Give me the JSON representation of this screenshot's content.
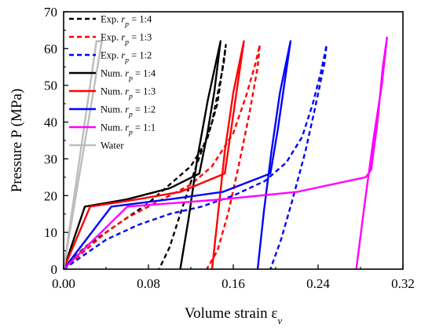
{
  "chart_data": {
    "type": "line",
    "xlabel": "Volume strain ε",
    "xlabel_sub": "v",
    "ylabel": "Pressure P (MPa)",
    "xlim": [
      0,
      0.32
    ],
    "ylim": [
      0,
      70
    ],
    "xticks": [
      "0.00",
      "0.08",
      "0.16",
      "0.24",
      "0.32"
    ],
    "yticks": [
      "0",
      "10",
      "20",
      "30",
      "40",
      "50",
      "60",
      "70"
    ],
    "legend_position": "top-left",
    "grid": false,
    "series": [
      {
        "name": "Exp. rp = 1:4",
        "label_prefix": "Exp. ",
        "label_var": "r",
        "label_sub": "p",
        "label_ratio": "= 1:4",
        "color": "#000000",
        "style": "dashed",
        "points": [
          [
            0.0,
            0
          ],
          [
            0.02,
            6
          ],
          [
            0.04,
            10
          ],
          [
            0.06,
            14
          ],
          [
            0.08,
            18
          ],
          [
            0.1,
            23
          ],
          [
            0.12,
            28
          ],
          [
            0.135,
            35
          ],
          [
            0.145,
            45
          ],
          [
            0.15,
            55
          ],
          [
            0.153,
            61
          ],
          [
            0.151,
            56
          ],
          [
            0.14,
            40
          ],
          [
            0.125,
            28
          ],
          [
            0.11,
            15
          ],
          [
            0.1,
            6
          ],
          [
            0.09,
            0
          ]
        ]
      },
      {
        "name": "Exp. rp = 1:3",
        "label_prefix": "Exp. ",
        "label_var": "r",
        "label_sub": "p",
        "label_ratio": "= 1:3",
        "color": "#ff0000",
        "style": "dashed",
        "points": [
          [
            0.0,
            0
          ],
          [
            0.02,
            5
          ],
          [
            0.04,
            10
          ],
          [
            0.06,
            14
          ],
          [
            0.08,
            17
          ],
          [
            0.1,
            20
          ],
          [
            0.12,
            23
          ],
          [
            0.14,
            28
          ],
          [
            0.16,
            37
          ],
          [
            0.172,
            47
          ],
          [
            0.181,
            56
          ],
          [
            0.185,
            61
          ],
          [
            0.183,
            55
          ],
          [
            0.175,
            42
          ],
          [
            0.165,
            28
          ],
          [
            0.155,
            15
          ],
          [
            0.145,
            5
          ],
          [
            0.135,
            0
          ]
        ]
      },
      {
        "name": "Exp. rp = 1:2",
        "label_prefix": "Exp. ",
        "label_var": "r",
        "label_sub": "p",
        "label_ratio": "= 1:2",
        "color": "#0000ff",
        "style": "dashed",
        "points": [
          [
            0.0,
            0
          ],
          [
            0.02,
            4
          ],
          [
            0.04,
            8
          ],
          [
            0.07,
            12
          ],
          [
            0.1,
            15
          ],
          [
            0.13,
            17
          ],
          [
            0.16,
            20
          ],
          [
            0.19,
            24
          ],
          [
            0.21,
            29
          ],
          [
            0.225,
            36
          ],
          [
            0.235,
            45
          ],
          [
            0.243,
            54
          ],
          [
            0.248,
            61
          ],
          [
            0.246,
            56
          ],
          [
            0.238,
            45
          ],
          [
            0.228,
            32
          ],
          [
            0.215,
            18
          ],
          [
            0.205,
            8
          ],
          [
            0.195,
            0
          ]
        ]
      },
      {
        "name": "Num. rp = 1:4",
        "label_prefix": "Num. ",
        "label_var": "r",
        "label_sub": "p",
        "label_ratio": "= 1:4",
        "color": "#000000",
        "style": "solid",
        "points": [
          [
            0.0,
            0
          ],
          [
            0.02,
            17
          ],
          [
            0.06,
            19
          ],
          [
            0.1,
            22
          ],
          [
            0.128,
            26
          ],
          [
            0.135,
            36
          ],
          [
            0.142,
            48
          ],
          [
            0.148,
            62
          ],
          [
            0.136,
            46
          ],
          [
            0.126,
            30
          ],
          [
            0.118,
            14
          ],
          [
            0.11,
            0
          ]
        ]
      },
      {
        "name": "Num. rp = 1:3",
        "label_prefix": "Num. ",
        "label_var": "r",
        "label_sub": "p",
        "label_ratio": "= 1:3",
        "color": "#ff0000",
        "style": "solid",
        "points": [
          [
            0.0,
            0
          ],
          [
            0.025,
            17
          ],
          [
            0.07,
            19
          ],
          [
            0.11,
            21
          ],
          [
            0.152,
            26
          ],
          [
            0.158,
            38
          ],
          [
            0.164,
            50
          ],
          [
            0.17,
            62
          ],
          [
            0.16,
            48
          ],
          [
            0.152,
            32
          ],
          [
            0.146,
            16
          ],
          [
            0.14,
            0
          ]
        ]
      },
      {
        "name": "Num. rp = 1:2",
        "label_prefix": "Num. ",
        "label_var": "r",
        "label_sub": "p",
        "label_ratio": "= 1:2",
        "color": "#0000ff",
        "style": "solid",
        "points": [
          [
            0.0,
            0
          ],
          [
            0.045,
            17
          ],
          [
            0.1,
            19
          ],
          [
            0.15,
            21
          ],
          [
            0.195,
            26
          ],
          [
            0.202,
            38
          ],
          [
            0.208,
            50
          ],
          [
            0.214,
            62
          ],
          [
            0.204,
            48
          ],
          [
            0.196,
            32
          ],
          [
            0.189,
            16
          ],
          [
            0.183,
            0
          ]
        ]
      },
      {
        "name": "Num. rp = 1:1",
        "label_prefix": "Num. ",
        "label_var": "r",
        "label_sub": "p",
        "label_ratio": "= 1:1",
        "color": "#ff00ff",
        "style": "solid",
        "points": [
          [
            0.0,
            0
          ],
          [
            0.06,
            17
          ],
          [
            0.15,
            19
          ],
          [
            0.22,
            21
          ],
          [
            0.285,
            25
          ],
          [
            0.29,
            27
          ],
          [
            0.296,
            40
          ],
          [
            0.301,
            55
          ],
          [
            0.305,
            63
          ],
          [
            0.3,
            50
          ],
          [
            0.292,
            35
          ],
          [
            0.284,
            18
          ],
          [
            0.276,
            0
          ]
        ]
      },
      {
        "name": "Water",
        "label_prefix": "Water",
        "label_var": "",
        "label_sub": "",
        "label_ratio": "",
        "color": "#bdbdbd",
        "style": "solid",
        "points": [
          [
            0.0,
            0
          ],
          [
            0.036,
            62
          ],
          [
            0.031,
            62
          ],
          [
            0.0,
            0
          ]
        ]
      }
    ]
  }
}
